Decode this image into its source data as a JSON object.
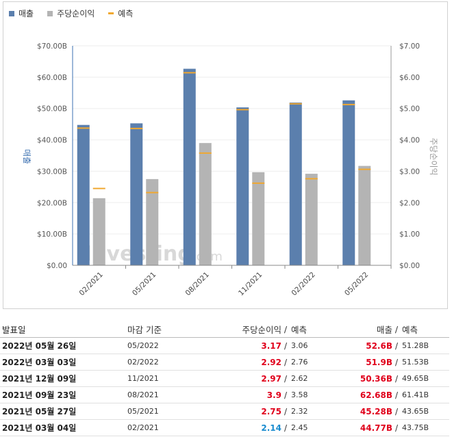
{
  "legend": {
    "revenue": "매출",
    "eps": "주당순이익",
    "forecast": "예측"
  },
  "colors": {
    "revenue": "#5b7fad",
    "eps": "#b4b4b4",
    "forecast": "#f0a830",
    "axis_left": "#3a6fb0",
    "axis_right": "#999999",
    "beat": "#e0001b",
    "miss": "#1a8ccf"
  },
  "watermark": "Investing.com",
  "chart_data": {
    "type": "bar",
    "categories": [
      "02/2021",
      "05/2021",
      "08/2021",
      "11/2021",
      "02/2022",
      "05/2022"
    ],
    "y_left": {
      "label": "매출",
      "ticks": [
        "$0.00",
        "$10.00B",
        "$20.00B",
        "$30.00B",
        "$40.00B",
        "$50.00B",
        "$60.00B",
        "$70.00B"
      ],
      "range": [
        0,
        70
      ]
    },
    "y_right": {
      "label": "주당순이익",
      "ticks": [
        "$0.00",
        "$1.00",
        "$2.00",
        "$3.00",
        "$4.00",
        "$5.00",
        "$6.00",
        "$7.00"
      ],
      "range": [
        0,
        7
      ]
    },
    "series": [
      {
        "name": "매출",
        "axis": "left",
        "values": [
          44.77,
          45.28,
          62.68,
          50.36,
          51.9,
          52.6
        ]
      },
      {
        "name": "주당순이익",
        "axis": "right",
        "values": [
          2.14,
          2.75,
          3.9,
          2.97,
          2.92,
          3.17
        ]
      }
    ],
    "forecast": {
      "name": "예측",
      "revenue": [
        43.75,
        43.65,
        61.41,
        49.65,
        51.53,
        51.28
      ],
      "eps": [
        2.45,
        2.32,
        3.58,
        2.62,
        2.76,
        3.06
      ]
    }
  },
  "table": {
    "headers": {
      "date": "발표일",
      "period": "마감 기준",
      "eps": "주당순이익",
      "sep": "/",
      "eps_forecast": "예측",
      "revenue": "매출",
      "revenue_forecast": "예측"
    },
    "rows": [
      {
        "date": "2022년 05월 26일",
        "period": "05/2022",
        "eps": "3.17",
        "eps_forecast": "3.06",
        "revenue": "52.6B",
        "revenue_forecast": "51.28B",
        "eps_status": "beat",
        "rev_status": "beat"
      },
      {
        "date": "2022년 03월 03일",
        "period": "02/2022",
        "eps": "2.92",
        "eps_forecast": "2.76",
        "revenue": "51.9B",
        "revenue_forecast": "51.53B",
        "eps_status": "beat",
        "rev_status": "beat"
      },
      {
        "date": "2021년 12월 09일",
        "period": "11/2021",
        "eps": "2.97",
        "eps_forecast": "2.62",
        "revenue": "50.36B",
        "revenue_forecast": "49.65B",
        "eps_status": "beat",
        "rev_status": "beat"
      },
      {
        "date": "2021년 09월 23일",
        "period": "08/2021",
        "eps": "3.9",
        "eps_forecast": "3.58",
        "revenue": "62.68B",
        "revenue_forecast": "61.41B",
        "eps_status": "beat",
        "rev_status": "beat"
      },
      {
        "date": "2021년 05월 27일",
        "period": "05/2021",
        "eps": "2.75",
        "eps_forecast": "2.32",
        "revenue": "45.28B",
        "revenue_forecast": "43.65B",
        "eps_status": "beat",
        "rev_status": "beat"
      },
      {
        "date": "2021년 03월 04일",
        "period": "02/2021",
        "eps": "2.14",
        "eps_forecast": "2.45",
        "revenue": "44.77B",
        "revenue_forecast": "43.75B",
        "eps_status": "miss",
        "rev_status": "beat"
      }
    ]
  }
}
